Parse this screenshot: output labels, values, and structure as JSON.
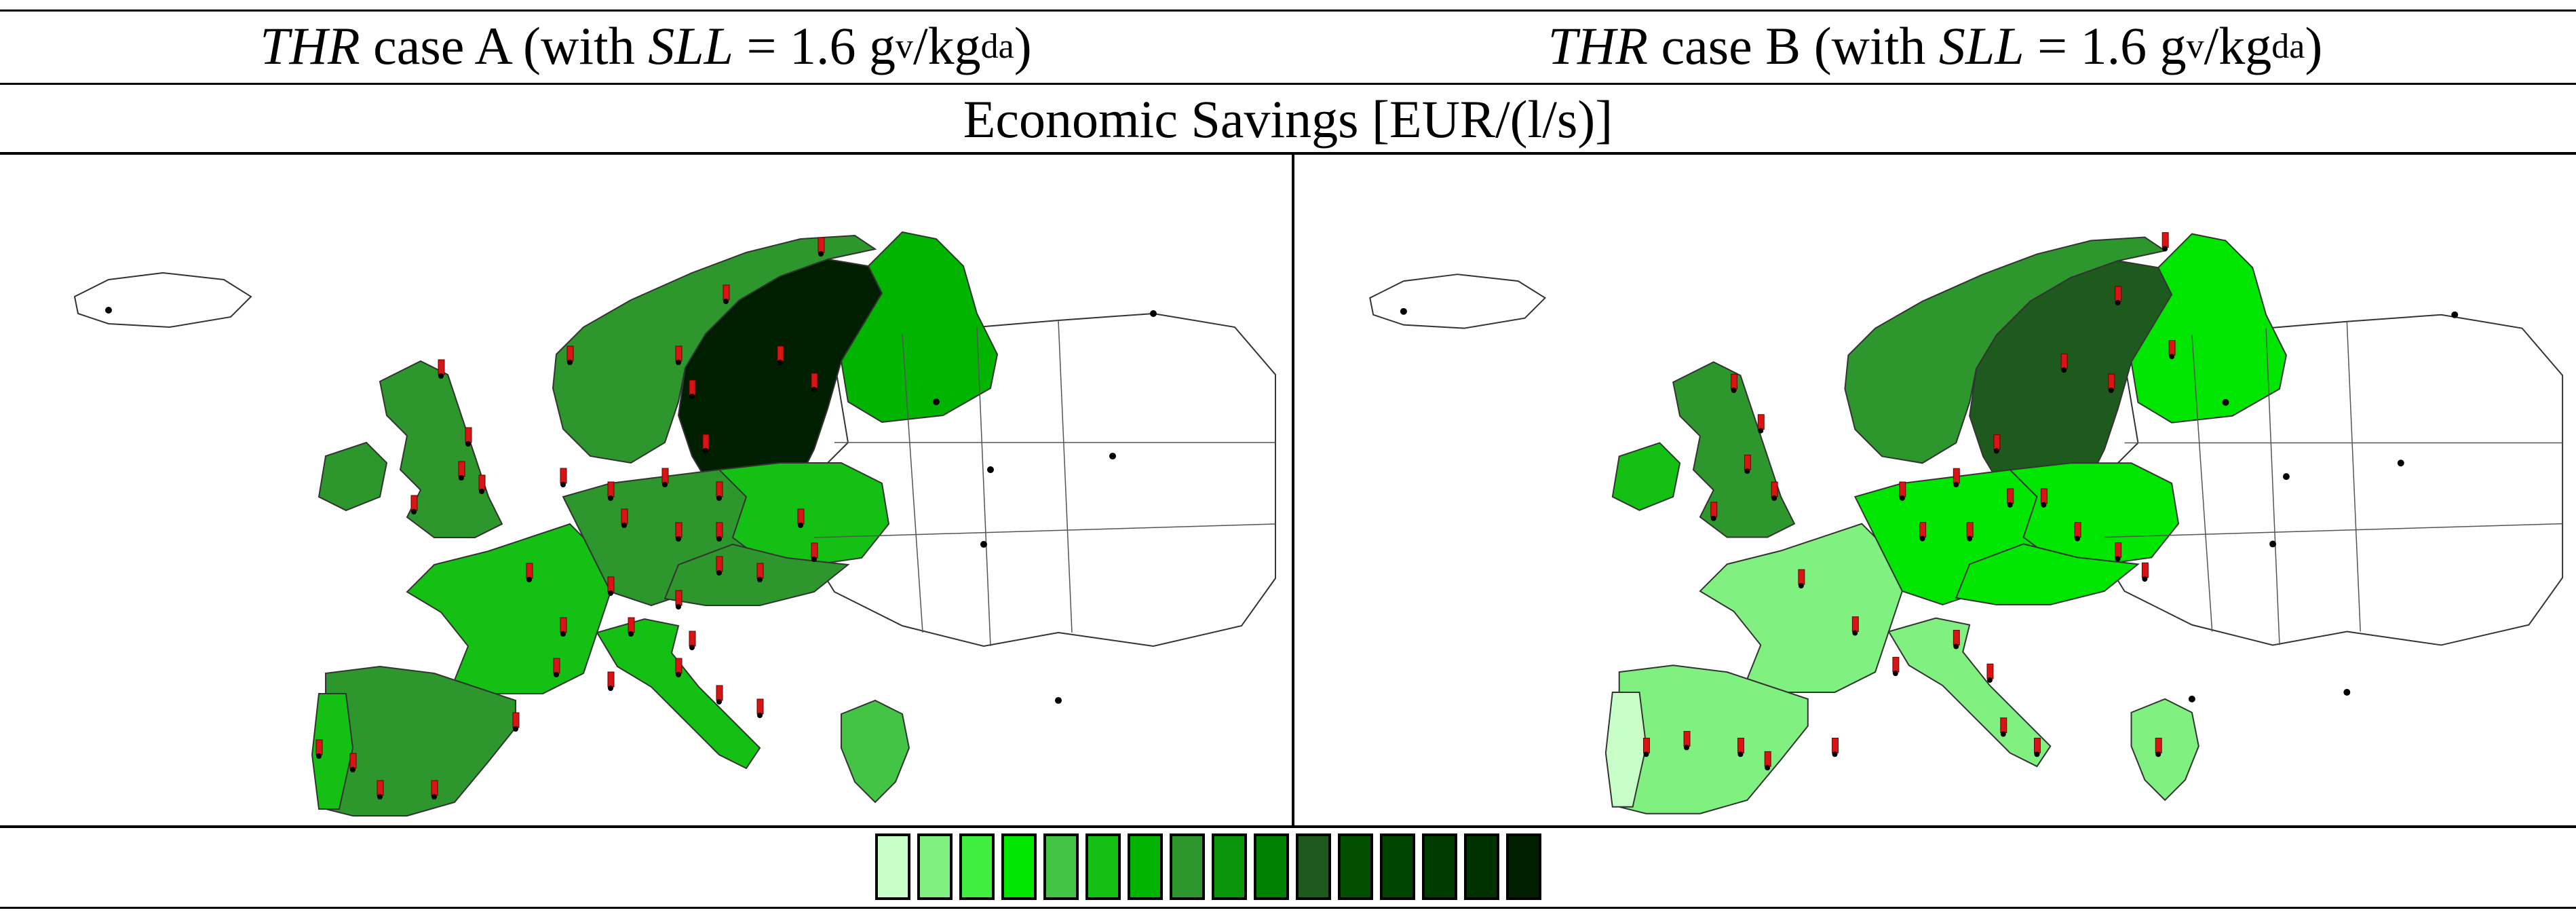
{
  "header": {
    "left": {
      "thr": "THR",
      "mid": " case A (with ",
      "sll": "SLL",
      "eq": " = 1.6 g",
      "sub1": "v",
      "sep": "/kg",
      "sub2": "da",
      "close": ")"
    },
    "right": {
      "thr": "THR",
      "mid": " case B (with ",
      "sll": "SLL",
      "eq": " = 1.6 g",
      "sub1": "v",
      "sep": "/kg",
      "sub2": "da",
      "close": ")"
    }
  },
  "title": "Economic Savings [EUR/(l/s)]",
  "legend": {
    "colors": [
      "#c8ffc8",
      "#80f080",
      "#40ee40",
      "#00e600",
      "#44c444",
      "#14c014",
      "#00b400",
      "#2d962d",
      "#0a960a",
      "#008200",
      "#1e5a1e",
      "#005000",
      "#004600",
      "#003c00",
      "#003200",
      "#001e00"
    ]
  },
  "maps": {
    "case_a": {
      "regions": {
        "iceland": "#ffffff",
        "norway": "#2d962d",
        "sweden": "#001e00",
        "finland": "#00b400",
        "uk": "#2d962d",
        "ireland": "#2d962d",
        "france": "#14c014",
        "iberia": "#2d962d",
        "portugal_coast": "#14c014",
        "benelux_germany": "#2d962d",
        "poland": "#14c014",
        "czech_austria": "#2d962d",
        "italy": "#14c014",
        "greece": "#44c444",
        "east_europe": "#ffffff"
      }
    },
    "case_b": {
      "regions": {
        "iceland": "#ffffff",
        "norway": "#2d962d",
        "sweden": "#1e5a1e",
        "finland": "#00e600",
        "uk": "#2d962d",
        "ireland": "#14c014",
        "france": "#80f080",
        "iberia": "#80f080",
        "portugal_coast": "#c8ffc8",
        "benelux_germany": "#00e600",
        "poland": "#00e600",
        "czech_austria": "#00e600",
        "italy": "#80f080",
        "greece": "#80f080",
        "east_europe": "#ffffff"
      }
    }
  }
}
